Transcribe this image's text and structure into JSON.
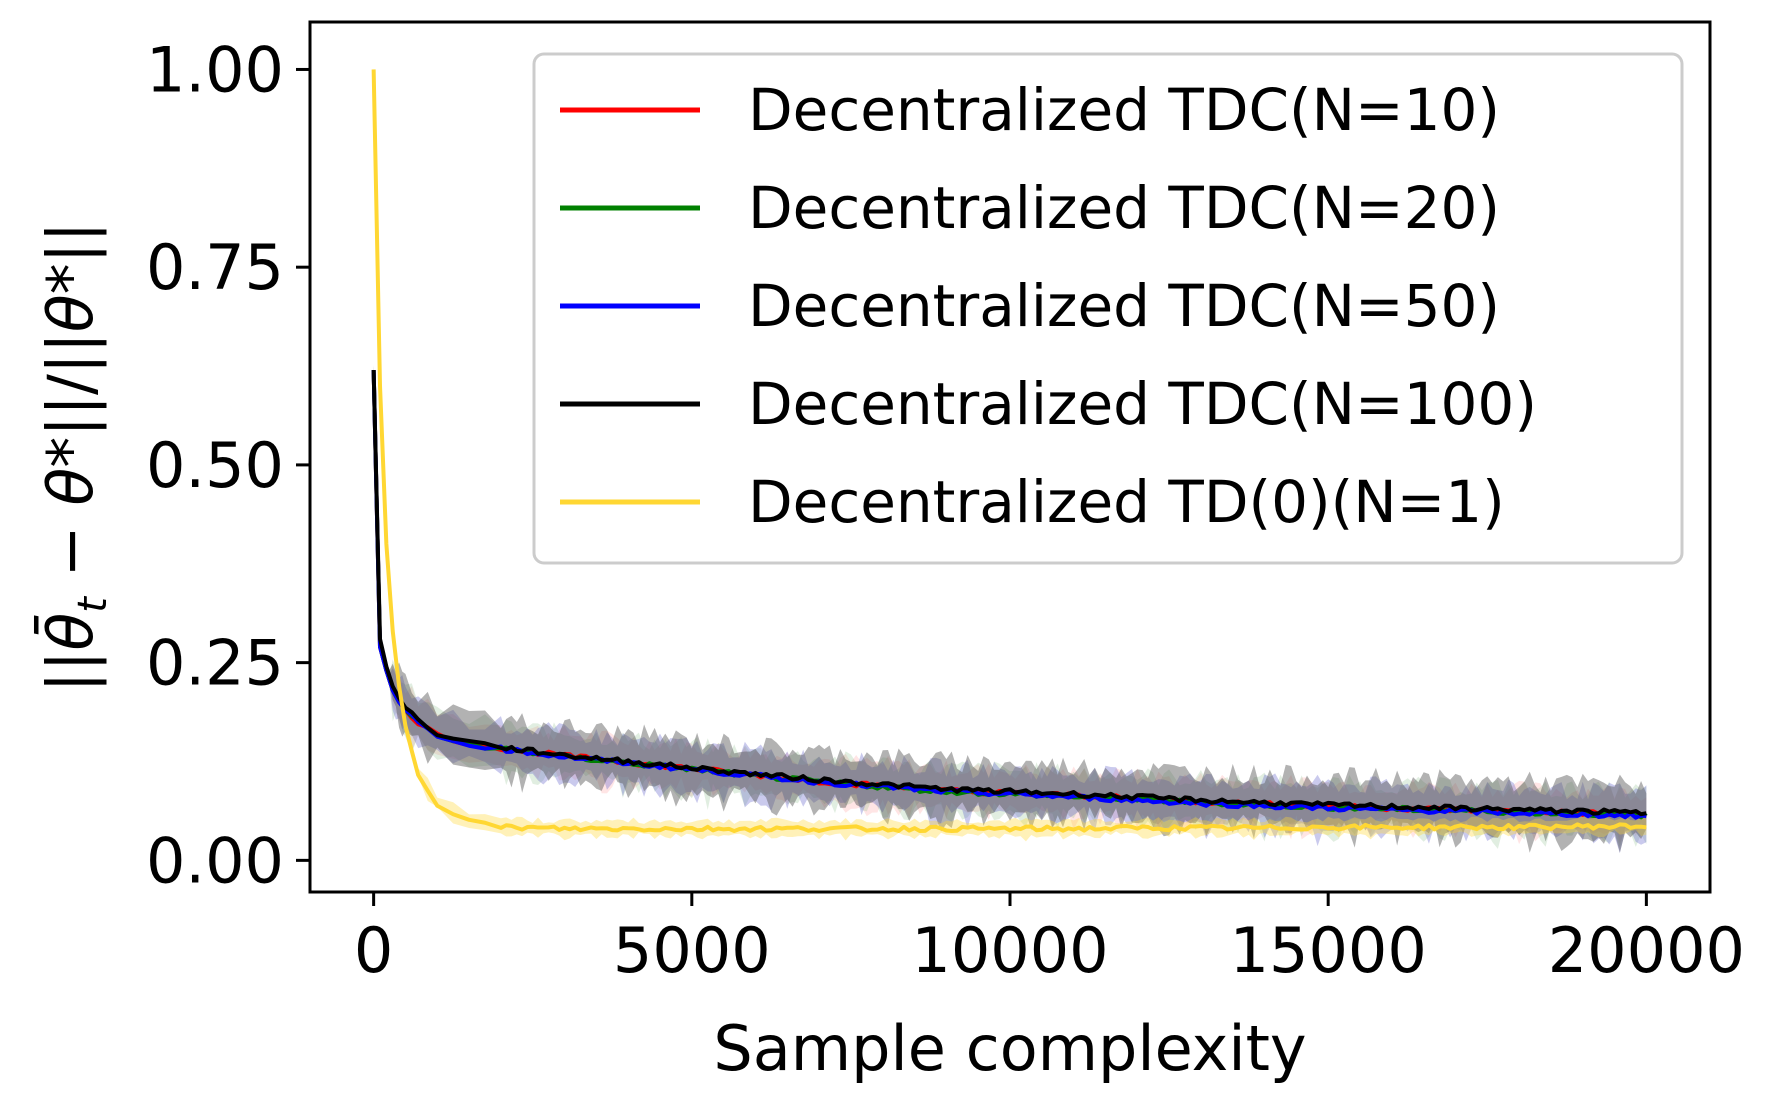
{
  "chart_data": {
    "type": "line",
    "title": "",
    "xlabel": "Sample complexity",
    "ylabel": "||θ̄t − θ*||/||θ*||",
    "ylabel_parts": {
      "open": "||",
      "theta_bar": "θ̄",
      "sub": "t",
      "minus": " − ",
      "theta_star": "θ*",
      "mid": "||/||",
      "theta_star2": "θ*",
      "close": "||"
    },
    "xlim": [
      -1000,
      21000
    ],
    "ylim": [
      -0.04,
      1.06
    ],
    "xticks": [
      0,
      5000,
      10000,
      15000,
      20000
    ],
    "xtick_labels": [
      "0",
      "5000",
      "10000",
      "15000",
      "20000"
    ],
    "yticks": [
      0.0,
      0.25,
      0.5,
      0.75,
      1.0
    ],
    "ytick_labels": [
      "0.00",
      "0.25",
      "0.50",
      "0.75",
      "1.00"
    ],
    "grid": false,
    "legend_position": "top-right",
    "x": [
      0,
      100,
      200,
      300,
      400,
      500,
      700,
      1000,
      1500,
      2000,
      3000,
      4000,
      5000,
      6000,
      7000,
      8000,
      9000,
      10000,
      11000,
      12000,
      13000,
      14000,
      15000,
      16000,
      17000,
      18000,
      19000,
      20000
    ],
    "series": [
      {
        "name": "Decentralized TDC(N=10)",
        "color": "#ff0000",
        "values": [
          0.62,
          0.27,
          0.24,
          0.215,
          0.2,
          0.19,
          0.175,
          0.158,
          0.148,
          0.142,
          0.132,
          0.124,
          0.116,
          0.108,
          0.1,
          0.094,
          0.088,
          0.085,
          0.082,
          0.078,
          0.074,
          0.071,
          0.068,
          0.066,
          0.064,
          0.062,
          0.06,
          0.058
        ],
        "band": 0.028
      },
      {
        "name": "Decentralized TDC(N=20)",
        "color": "#008000",
        "values": [
          0.62,
          0.27,
          0.24,
          0.215,
          0.2,
          0.19,
          0.175,
          0.157,
          0.147,
          0.141,
          0.131,
          0.123,
          0.115,
          0.107,
          0.099,
          0.093,
          0.087,
          0.084,
          0.081,
          0.077,
          0.073,
          0.07,
          0.067,
          0.065,
          0.063,
          0.061,
          0.059,
          0.057
        ],
        "band": 0.03
      },
      {
        "name": "Decentralized TDC(N=50)",
        "color": "#0000ff",
        "values": [
          0.62,
          0.27,
          0.24,
          0.215,
          0.2,
          0.19,
          0.175,
          0.157,
          0.147,
          0.141,
          0.131,
          0.123,
          0.115,
          0.107,
          0.099,
          0.093,
          0.087,
          0.084,
          0.08,
          0.076,
          0.072,
          0.069,
          0.066,
          0.064,
          0.062,
          0.06,
          0.058,
          0.056
        ],
        "band": 0.03
      },
      {
        "name": "Decentralized TDC(N=100)",
        "color": "#000000",
        "values": [
          0.62,
          0.28,
          0.245,
          0.22,
          0.205,
          0.193,
          0.178,
          0.16,
          0.15,
          0.143,
          0.133,
          0.125,
          0.117,
          0.109,
          0.102,
          0.096,
          0.09,
          0.087,
          0.084,
          0.08,
          0.076,
          0.073,
          0.07,
          0.068,
          0.066,
          0.064,
          0.062,
          0.06
        ],
        "band": 0.035
      },
      {
        "name": "Decentralized TD(0)(N=1)",
        "color": "#ffd733",
        "values": [
          1.0,
          0.6,
          0.4,
          0.29,
          0.22,
          0.17,
          0.11,
          0.072,
          0.05,
          0.042,
          0.04,
          0.04,
          0.04,
          0.04,
          0.04,
          0.04,
          0.04,
          0.04,
          0.04,
          0.041,
          0.041,
          0.041,
          0.042,
          0.042,
          0.042,
          0.042,
          0.043,
          0.043
        ],
        "band": 0.01
      }
    ]
  }
}
